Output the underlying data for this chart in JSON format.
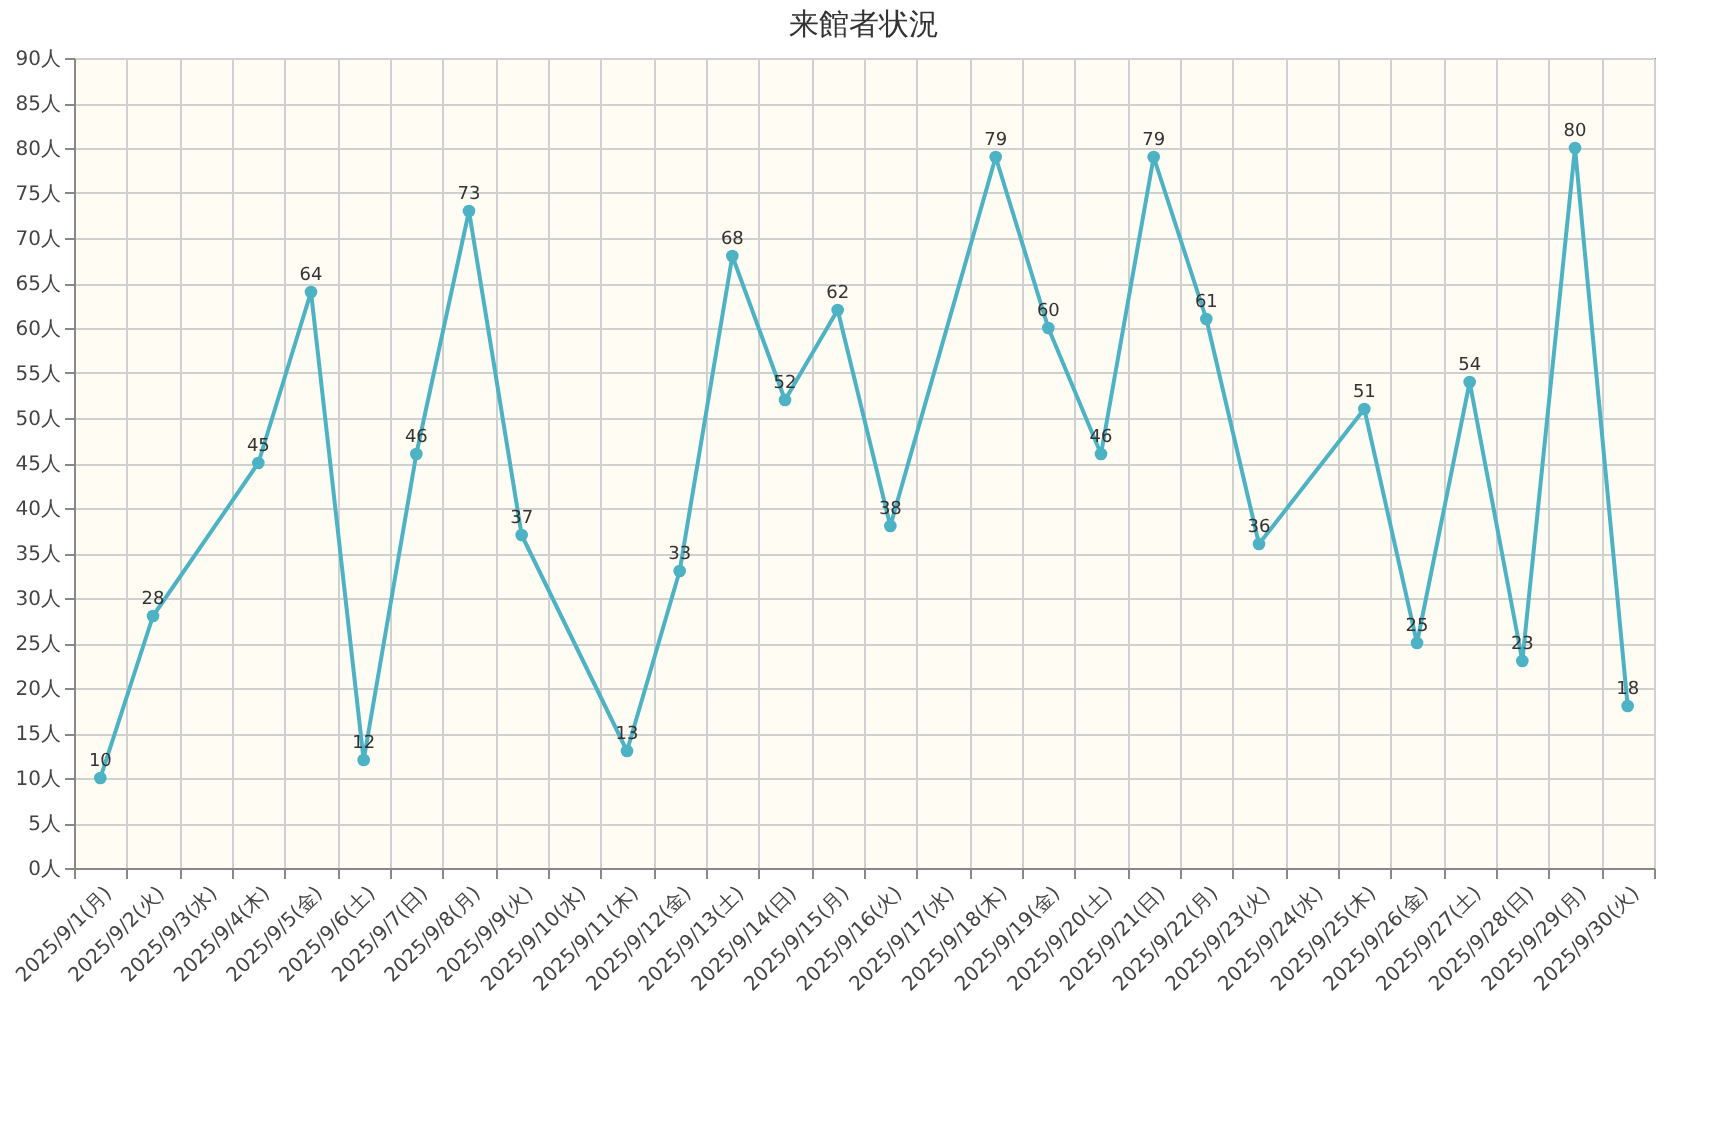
{
  "chart_data": {
    "type": "line",
    "title": "来館者状況",
    "categories": [
      "2025/9/1(月)",
      "2025/9/2(火)",
      "2025/9/3(水)",
      "2025/9/4(木)",
      "2025/9/5(金)",
      "2025/9/6(土)",
      "2025/9/7(日)",
      "2025/9/8(月)",
      "2025/9/9(火)",
      "2025/9/10(水)",
      "2025/9/11(木)",
      "2025/9/12(金)",
      "2025/9/13(土)",
      "2025/9/14(日)",
      "2025/9/15(月)",
      "2025/9/16(火)",
      "2025/9/17(水)",
      "2025/9/18(木)",
      "2025/9/19(金)",
      "2025/9/20(土)",
      "2025/9/21(日)",
      "2025/9/22(月)",
      "2025/9/23(火)",
      "2025/9/24(水)",
      "2025/9/25(木)",
      "2025/9/26(金)",
      "2025/9/27(土)",
      "2025/9/28(日)",
      "2025/9/29(月)",
      "2025/9/30(火)"
    ],
    "series": [
      {
        "color": "#4db3c4",
        "values": [
          10,
          28,
          null,
          45,
          64,
          12,
          46,
          73,
          37,
          null,
          13,
          33,
          68,
          52,
          62,
          38,
          null,
          79,
          60,
          46,
          79,
          61,
          36,
          null,
          51,
          25,
          54,
          23,
          80,
          18
        ]
      }
    ],
    "ylim": [
      0,
      90
    ],
    "yticks": [
      {
        "value": 0,
        "label": "0人"
      },
      {
        "value": 5,
        "label": "5人"
      },
      {
        "value": 10,
        "label": "10人"
      },
      {
        "value": 15,
        "label": "15人"
      },
      {
        "value": 20,
        "label": "20人"
      },
      {
        "value": 25,
        "label": "25人"
      },
      {
        "value": 30,
        "label": "30人"
      },
      {
        "value": 35,
        "label": "35人"
      },
      {
        "value": 40,
        "label": "40人"
      },
      {
        "value": 45,
        "label": "45人"
      },
      {
        "value": 50,
        "label": "50人"
      },
      {
        "value": 55,
        "label": "55人"
      },
      {
        "value": 60,
        "label": "60人"
      },
      {
        "value": 65,
        "label": "65人"
      },
      {
        "value": 70,
        "label": "70人"
      },
      {
        "value": 75,
        "label": "75人"
      },
      {
        "value": 80,
        "label": "80人"
      },
      {
        "value": 85,
        "label": "85人"
      },
      {
        "value": 90,
        "label": "90人"
      }
    ],
    "grid": true,
    "marker": "circle",
    "data_labels": true
  }
}
